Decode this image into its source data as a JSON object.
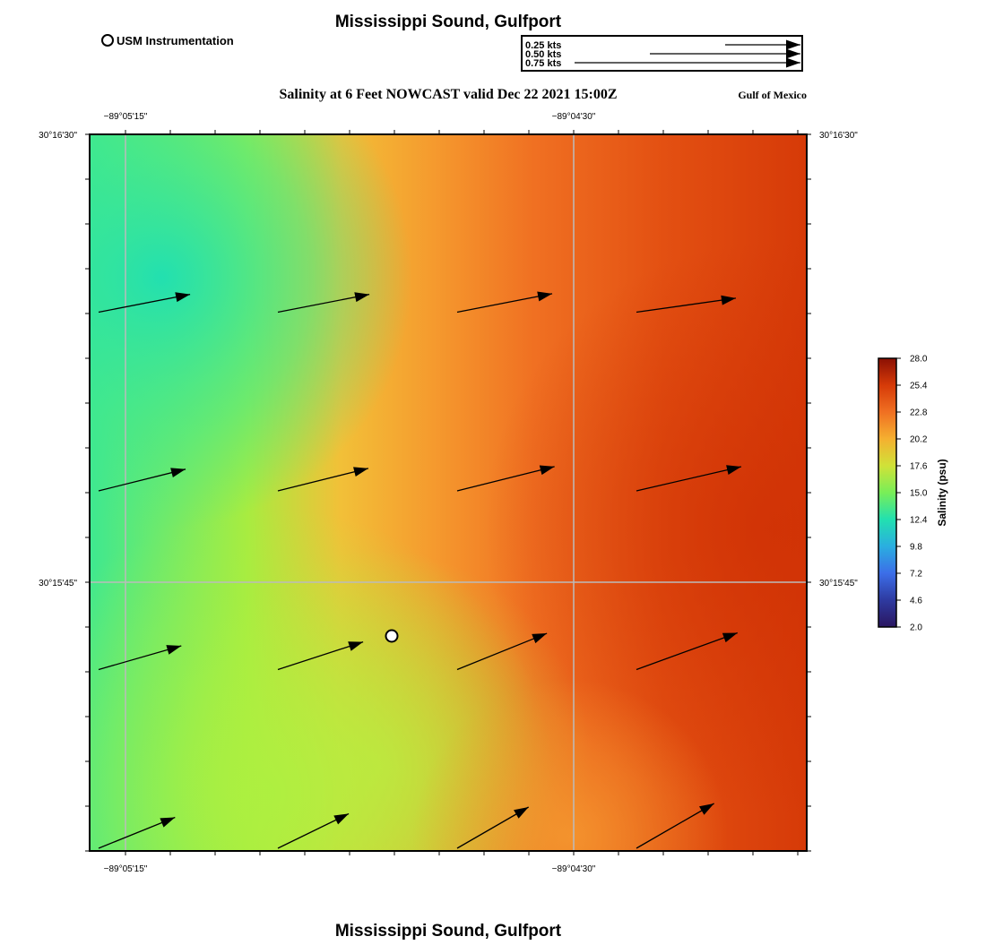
{
  "header": {
    "title": "Mississippi Sound, Gulfport",
    "subtitle": "Salinity at 6 Feet NOWCAST valid Dec 22 2021 15:00Z",
    "region": "Gulf of Mexico",
    "footer_title": "Mississippi Sound, Gulfport"
  },
  "legend": {
    "station_label": "USM Instrumentation"
  },
  "vector_scale": {
    "entries": [
      {
        "label": "0.25 kts",
        "speed": 0.25
      },
      {
        "label": "0.50 kts",
        "speed": 0.5
      },
      {
        "label": "0.75 kts",
        "speed": 0.75
      }
    ]
  },
  "axes": {
    "lon_labels": [
      "−89°05'15\"",
      "−89°04'30\""
    ],
    "lat_labels": [
      "30°16'30\"",
      "30°15'45\""
    ]
  },
  "colorbar": {
    "title": "Salinity (psu)",
    "min": 2.0,
    "max": 28.0,
    "ticks": [
      "28.0",
      "25.4",
      "22.8",
      "20.2",
      "17.6",
      "15.0",
      "12.4",
      "9.8",
      "7.2",
      "4.6",
      "2.0"
    ]
  },
  "colors": {
    "low_salinity": "#2de6a8",
    "mid_salinity": "#a8f03c",
    "high_salinity": "#f5a030",
    "max_salinity": "#d43208",
    "grid": "#bbbbbb"
  },
  "current_vectors": [
    {
      "row": 1,
      "col": 1,
      "speed_kts": 0.26,
      "dir_deg": 79
    },
    {
      "row": 1,
      "col": 2,
      "speed_kts": 0.26,
      "dir_deg": 79
    },
    {
      "row": 1,
      "col": 3,
      "speed_kts": 0.27,
      "dir_deg": 79
    },
    {
      "row": 1,
      "col": 4,
      "speed_kts": 0.28,
      "dir_deg": 82
    },
    {
      "row": 2,
      "col": 1,
      "speed_kts": 0.25,
      "dir_deg": 76
    },
    {
      "row": 2,
      "col": 2,
      "speed_kts": 0.26,
      "dir_deg": 76
    },
    {
      "row": 2,
      "col": 3,
      "speed_kts": 0.28,
      "dir_deg": 76
    },
    {
      "row": 2,
      "col": 4,
      "speed_kts": 0.3,
      "dir_deg": 77
    },
    {
      "row": 3,
      "col": 1,
      "speed_kts": 0.24,
      "dir_deg": 74
    },
    {
      "row": 3,
      "col": 2,
      "speed_kts": 0.25,
      "dir_deg": 72
    },
    {
      "row": 3,
      "col": 3,
      "speed_kts": 0.27,
      "dir_deg": 68
    },
    {
      "row": 3,
      "col": 4,
      "speed_kts": 0.3,
      "dir_deg": 70
    },
    {
      "row": 4,
      "col": 1,
      "speed_kts": 0.23,
      "dir_deg": 68
    },
    {
      "row": 4,
      "col": 2,
      "speed_kts": 0.22,
      "dir_deg": 64
    },
    {
      "row": 4,
      "col": 3,
      "speed_kts": 0.23,
      "dir_deg": 60
    },
    {
      "row": 4,
      "col": 4,
      "speed_kts": 0.25,
      "dir_deg": 60
    }
  ]
}
